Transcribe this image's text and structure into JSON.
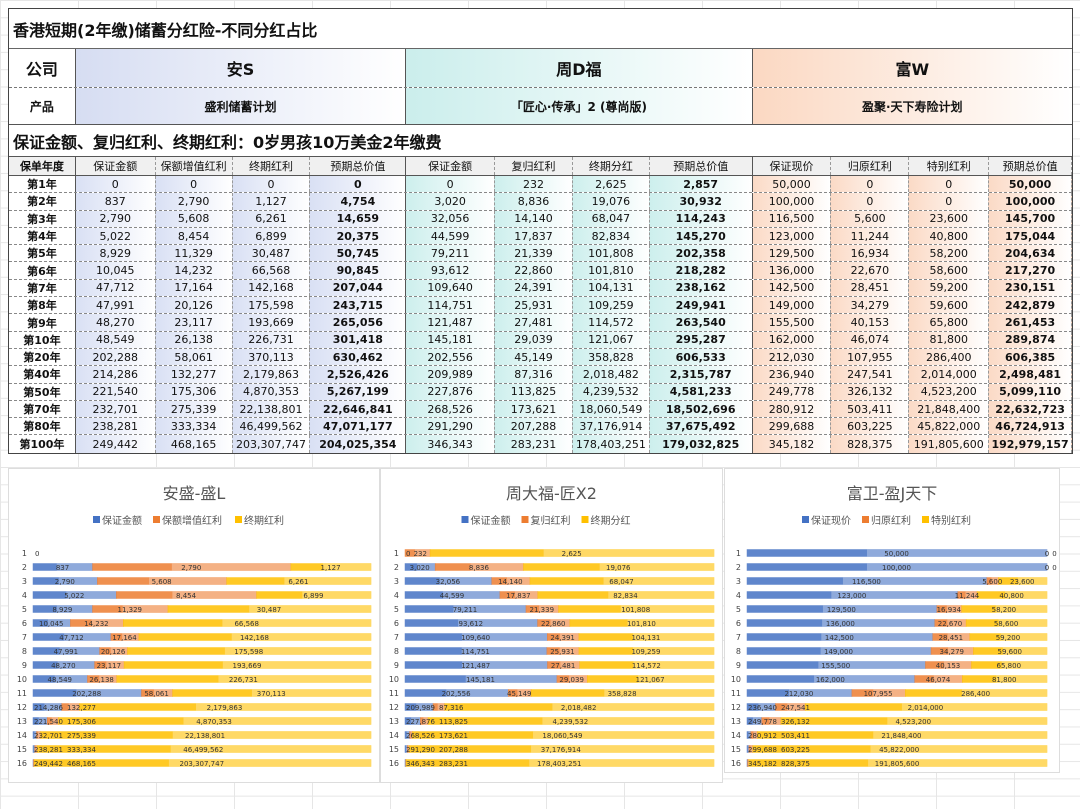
{
  "title": "香港短期(2年缴)储蓄分红险-不同分红占比",
  "labels": {
    "company": "公司",
    "product": "产品",
    "year": "保单年度"
  },
  "companies": [
    {
      "name": "安S",
      "product": "盛利储蓄计划",
      "headers": [
        "保证金额",
        "保额增值红利",
        "终期红利",
        "预期总价值"
      ],
      "color": "#d6ddf2"
    },
    {
      "name": "周D福",
      "product": "「匠心·传承」2 (尊尚版)",
      "headers": [
        "保证金额",
        "复归红利",
        "终期分红",
        "预期总价值"
      ],
      "color": "#cbeeec"
    },
    {
      "name": "富W",
      "product": "盈聚·天下寿险计划",
      "headers": [
        "保证现价",
        "归原红利",
        "特别红利",
        "预期总价值"
      ],
      "color": "#fbd8c2"
    }
  ],
  "subtitle": "保证金额、复归红利、终期红利：0岁男孩10万美金2年缴费",
  "rows": [
    {
      "year": "第1年",
      "a": [
        "0",
        "0",
        "0",
        "0"
      ],
      "b": [
        "0",
        "232",
        "2,625",
        "2,857"
      ],
      "c": [
        "50,000",
        "0",
        "0",
        "50,000"
      ]
    },
    {
      "year": "第2年",
      "a": [
        "837",
        "2,790",
        "1,127",
        "4,754"
      ],
      "b": [
        "3,020",
        "8,836",
        "19,076",
        "30,932"
      ],
      "c": [
        "100,000",
        "0",
        "0",
        "100,000"
      ]
    },
    {
      "year": "第3年",
      "a": [
        "2,790",
        "5,608",
        "6,261",
        "14,659"
      ],
      "b": [
        "32,056",
        "14,140",
        "68,047",
        "114,243"
      ],
      "c": [
        "116,500",
        "5,600",
        "23,600",
        "145,700"
      ]
    },
    {
      "year": "第4年",
      "a": [
        "5,022",
        "8,454",
        "6,899",
        "20,375"
      ],
      "b": [
        "44,599",
        "17,837",
        "82,834",
        "145,270"
      ],
      "c": [
        "123,000",
        "11,244",
        "40,800",
        "175,044"
      ]
    },
    {
      "year": "第5年",
      "a": [
        "8,929",
        "11,329",
        "30,487",
        "50,745"
      ],
      "b": [
        "79,211",
        "21,339",
        "101,808",
        "202,358"
      ],
      "c": [
        "129,500",
        "16,934",
        "58,200",
        "204,634"
      ]
    },
    {
      "year": "第6年",
      "a": [
        "10,045",
        "14,232",
        "66,568",
        "90,845"
      ],
      "b": [
        "93,612",
        "22,860",
        "101,810",
        "218,282"
      ],
      "c": [
        "136,000",
        "22,670",
        "58,600",
        "217,270"
      ]
    },
    {
      "year": "第7年",
      "a": [
        "47,712",
        "17,164",
        "142,168",
        "207,044"
      ],
      "b": [
        "109,640",
        "24,391",
        "104,131",
        "238,162"
      ],
      "c": [
        "142,500",
        "28,451",
        "59,200",
        "230,151"
      ]
    },
    {
      "year": "第8年",
      "a": [
        "47,991",
        "20,126",
        "175,598",
        "243,715"
      ],
      "b": [
        "114,751",
        "25,931",
        "109,259",
        "249,941"
      ],
      "c": [
        "149,000",
        "34,279",
        "59,600",
        "242,879"
      ]
    },
    {
      "year": "第9年",
      "a": [
        "48,270",
        "23,117",
        "193,669",
        "265,056"
      ],
      "b": [
        "121,487",
        "27,481",
        "114,572",
        "263,540"
      ],
      "c": [
        "155,500",
        "40,153",
        "65,800",
        "261,453"
      ]
    },
    {
      "year": "第10年",
      "a": [
        "48,549",
        "26,138",
        "226,731",
        "301,418"
      ],
      "b": [
        "145,181",
        "29,039",
        "121,067",
        "295,287"
      ],
      "c": [
        "162,000",
        "46,074",
        "81,800",
        "289,874"
      ]
    },
    {
      "year": "第20年",
      "a": [
        "202,288",
        "58,061",
        "370,113",
        "630,462"
      ],
      "b": [
        "202,556",
        "45,149",
        "358,828",
        "606,533"
      ],
      "c": [
        "212,030",
        "107,955",
        "286,400",
        "606,385"
      ]
    },
    {
      "year": "第40年",
      "a": [
        "214,286",
        "132,277",
        "2,179,863",
        "2,526,426"
      ],
      "b": [
        "209,989",
        "87,316",
        "2,018,482",
        "2,315,787"
      ],
      "c": [
        "236,940",
        "247,541",
        "2,014,000",
        "2,498,481"
      ]
    },
    {
      "year": "第50年",
      "a": [
        "221,540",
        "175,306",
        "4,870,353",
        "5,267,199"
      ],
      "b": [
        "227,876",
        "113,825",
        "4,239,532",
        "4,581,233"
      ],
      "c": [
        "249,778",
        "326,132",
        "4,523,200",
        "5,099,110"
      ]
    },
    {
      "year": "第70年",
      "a": [
        "232,701",
        "275,339",
        "22,138,801",
        "22,646,841"
      ],
      "b": [
        "268,526",
        "173,621",
        "18,060,549",
        "18,502,696"
      ],
      "c": [
        "280,912",
        "503,411",
        "21,848,400",
        "22,632,723"
      ]
    },
    {
      "year": "第80年",
      "a": [
        "238,281",
        "333,334",
        "46,499,562",
        "47,071,177"
      ],
      "b": [
        "291,290",
        "207,288",
        "37,176,914",
        "37,675,492"
      ],
      "c": [
        "299,688",
        "603,225",
        "45,822,000",
        "46,724,913"
      ]
    },
    {
      "year": "第100年",
      "a": [
        "249,442",
        "468,165",
        "203,307,747",
        "204,025,354"
      ],
      "b": [
        "346,343",
        "283,231",
        "178,403,251",
        "179,032,825"
      ],
      "c": [
        "345,182",
        "828,375",
        "191,805,600",
        "192,979,157"
      ]
    }
  ],
  "chart_data": [
    {
      "type": "bar",
      "stacking": "percent",
      "orientation": "horizontal",
      "title": "安盛-盛L",
      "legend": "top",
      "categories": [
        "1",
        "2",
        "3",
        "4",
        "5",
        "6",
        "7",
        "8",
        "9",
        "10",
        "11",
        "12",
        "13",
        "14",
        "15",
        "16"
      ],
      "series": [
        {
          "name": "保证金额",
          "color": "#4472c4",
          "values": [
            0,
            837,
            2790,
            5022,
            8929,
            10045,
            47712,
            47991,
            48270,
            48549,
            202288,
            214286,
            221540,
            232701,
            238281,
            249442
          ]
        },
        {
          "name": "保额增值红利",
          "color": "#ed7d31",
          "values": [
            0,
            2790,
            5608,
            8454,
            11329,
            14232,
            17164,
            20126,
            23117,
            26138,
            58061,
            132277,
            175306,
            275339,
            333334,
            468165
          ]
        },
        {
          "name": "终期红利",
          "color": "#ffc000",
          "values": [
            0,
            1127,
            6261,
            6899,
            30487,
            66568,
            142168,
            175598,
            193669,
            226731,
            370113,
            2179863,
            4870353,
            22138801,
            46499562,
            203307747
          ]
        }
      ]
    },
    {
      "type": "bar",
      "stacking": "percent",
      "orientation": "horizontal",
      "title": "周大福-匠X2",
      "legend": "top",
      "categories": [
        "1",
        "2",
        "3",
        "4",
        "5",
        "6",
        "7",
        "8",
        "9",
        "10",
        "11",
        "12",
        "13",
        "14",
        "15",
        "16"
      ],
      "series": [
        {
          "name": "保证金额",
          "color": "#4472c4",
          "values": [
            0,
            3020,
            32056,
            44599,
            79211,
            93612,
            109640,
            114751,
            121487,
            145181,
            202556,
            209989,
            227876,
            268526,
            291290,
            346343
          ]
        },
        {
          "name": "复归红利",
          "color": "#ed7d31",
          "values": [
            232,
            8836,
            14140,
            17837,
            21339,
            22860,
            24391,
            25931,
            27481,
            29039,
            45149,
            87316,
            113825,
            173621,
            207288,
            283231
          ]
        },
        {
          "name": "终期分红",
          "color": "#ffc000",
          "values": [
            2625,
            19076,
            68047,
            82834,
            101808,
            101810,
            104131,
            109259,
            114572,
            121067,
            358828,
            2018482,
            4239532,
            18060549,
            37176914,
            178403251
          ]
        }
      ]
    },
    {
      "type": "bar",
      "stacking": "percent",
      "orientation": "horizontal",
      "title": "富卫-盈J天下",
      "legend": "top",
      "categories": [
        "1",
        "2",
        "3",
        "4",
        "5",
        "6",
        "7",
        "8",
        "9",
        "10",
        "11",
        "12",
        "13",
        "14",
        "15",
        "16"
      ],
      "series": [
        {
          "name": "保证现价",
          "color": "#4472c4",
          "values": [
            50000,
            100000,
            116500,
            123000,
            129500,
            136000,
            142500,
            149000,
            155500,
            162000,
            212030,
            236940,
            249778,
            280912,
            299688,
            345182
          ]
        },
        {
          "name": "归原红利",
          "color": "#ed7d31",
          "values": [
            0,
            0,
            5600,
            11244,
            16934,
            22670,
            28451,
            34279,
            40153,
            46074,
            107955,
            247541,
            326132,
            503411,
            603225,
            828375
          ]
        },
        {
          "name": "特别红利",
          "color": "#ffc000",
          "values": [
            0,
            0,
            23600,
            40800,
            58200,
            58600,
            59200,
            59600,
            65800,
            81800,
            286400,
            2014000,
            4523200,
            21848400,
            45822000,
            191805600
          ]
        }
      ]
    }
  ]
}
